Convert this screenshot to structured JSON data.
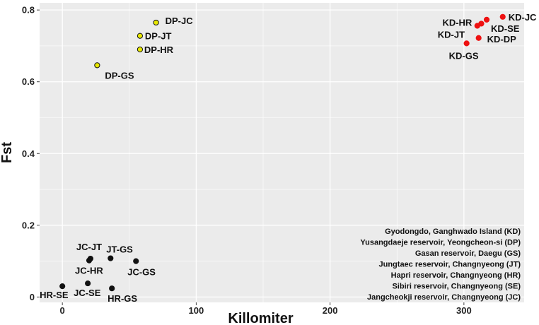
{
  "chart_data": {
    "type": "scatter",
    "title": "",
    "xlabel": "Killomiter",
    "ylabel": "Fst",
    "xlim": [
      -17,
      345
    ],
    "ylim": [
      -0.015,
      0.82
    ],
    "x_ticks": [
      0,
      100,
      200,
      300
    ],
    "x_tick_labels": [
      "0",
      "100",
      "200",
      "300"
    ],
    "y_ticks": [
      0,
      0.2,
      0.4,
      0.6,
      0.8
    ],
    "y_tick_labels": [
      "0",
      "0.2",
      "0.4",
      "0.6",
      "0.8"
    ],
    "grid": true,
    "background": "#ebebeb",
    "grid_color": "#ffffff",
    "series": [
      {
        "color": "#111111",
        "stroke": "#111111",
        "points": [
          {
            "label": "JC-JT",
            "x": 21,
            "y": 0.107
          },
          {
            "label": "JC-HR",
            "x": 20,
            "y": 0.102
          },
          {
            "label": "JT-GS",
            "x": 36,
            "y": 0.108
          },
          {
            "label": "JC-GS",
            "x": 55,
            "y": 0.1
          },
          {
            "label": "HR-SE",
            "x": 0,
            "y": 0.03
          },
          {
            "label": "JC-SE",
            "x": 19,
            "y": 0.038
          },
          {
            "label": "HR-GS",
            "x": 37,
            "y": 0.024
          }
        ]
      },
      {
        "color": "#e8e800",
        "stroke": "#111111",
        "points": [
          {
            "label": "DP-JC",
            "x": 70,
            "y": 0.765
          },
          {
            "label": "DP-JT",
            "x": 58,
            "y": 0.728
          },
          {
            "label": "DP-HR",
            "x": 58,
            "y": 0.69
          },
          {
            "label": "DP-GS",
            "x": 26,
            "y": 0.646
          }
        ]
      },
      {
        "color": "#ee1111",
        "stroke": "#ee1111",
        "points": [
          {
            "label": "KD-JC",
            "x": 329,
            "y": 0.781
          },
          {
            "label": "KD-SE",
            "x": 317,
            "y": 0.773
          },
          {
            "label": "KD-HR",
            "x": 313,
            "y": 0.762
          },
          {
            "label": "KD-JT",
            "x": 310,
            "y": 0.756
          },
          {
            "label": "KD-DP",
            "x": 311,
            "y": 0.722
          },
          {
            "label": "KD-GS",
            "x": 302,
            "y": 0.707
          }
        ]
      }
    ],
    "annotations": [
      "Gyodongdo, Ganghwado Island (KD)",
      "Yusangdaeje  reservoir, Yeongcheon-si (DP)",
      "Gasan reservoir, Daegu (GS)",
      "Jungtaec reservoir, Changnyeong (JT)",
      "Hapri reservoir, Changnyeong (HR)",
      "Sibiri reservoir, Changnyeong (SE)",
      "Jangcheokji reservoir, Changnyeong (JC)"
    ]
  }
}
